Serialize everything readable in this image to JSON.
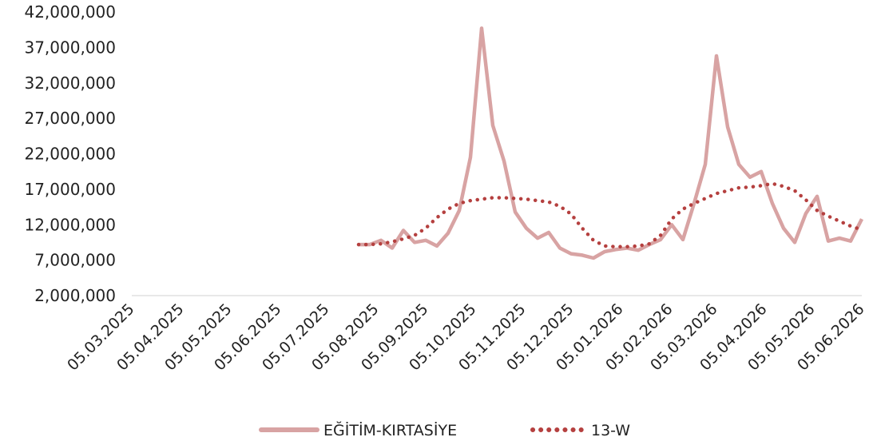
{
  "chart_data": {
    "type": "line",
    "title": "",
    "xlabel": "",
    "ylabel": "",
    "ylim": [
      2000000,
      42000000
    ],
    "y_ticks": [
      "2,000,000",
      "7,000,000",
      "12,000,000",
      "17,000,000",
      "22,000,000",
      "27,000,000",
      "32,000,000",
      "37,000,000",
      "42,000,000"
    ],
    "x_ticks": [
      "05.03.2025",
      "05.04.2025",
      "05.05.2025",
      "05.06.2025",
      "05.07.2025",
      "05.08.2025",
      "05.09.2025",
      "05.10.2025",
      "05.11.2025",
      "05.12.2025",
      "05.01.2026",
      "05.02.2026",
      "05.03.2026",
      "05.04.2026",
      "05.05.2026",
      "05.06.2026"
    ],
    "x_range": [
      "2025-03-05",
      "2026-06-05"
    ],
    "legend_position": "bottom",
    "grid": false,
    "series": [
      {
        "name": "EĞİTİM-KIRTASİYE",
        "color": "#d8a3a3",
        "style": "solid",
        "x": [
          "2025-07-25",
          "2025-08-01",
          "2025-08-08",
          "2025-08-15",
          "2025-08-22",
          "2025-08-29",
          "2025-09-05",
          "2025-09-12",
          "2025-09-19",
          "2025-09-26",
          "2025-10-03",
          "2025-10-10",
          "2025-10-17",
          "2025-10-24",
          "2025-10-31",
          "2025-11-07",
          "2025-11-14",
          "2025-11-21",
          "2025-11-28",
          "2025-12-05",
          "2025-12-12",
          "2025-12-19",
          "2025-12-26",
          "2026-01-02",
          "2026-01-09",
          "2026-01-16",
          "2026-01-23",
          "2026-01-30",
          "2026-02-06",
          "2026-02-13",
          "2026-02-20",
          "2026-02-27",
          "2026-03-06",
          "2026-03-13",
          "2026-03-20",
          "2026-03-27",
          "2026-04-03",
          "2026-04-10",
          "2026-04-17",
          "2026-04-24",
          "2026-05-01",
          "2026-05-08",
          "2026-05-15",
          "2026-05-22",
          "2026-05-29",
          "2026-06-05"
        ],
        "values": [
          9200000,
          9200000,
          9800000,
          8700000,
          11200000,
          9500000,
          9800000,
          9000000,
          10800000,
          14000000,
          21500000,
          39700000,
          26000000,
          21000000,
          13800000,
          11500000,
          10100000,
          10900000,
          8700000,
          7900000,
          7700000,
          7300000,
          8200000,
          8500000,
          8700000,
          8400000,
          9200000,
          9900000,
          12000000,
          9900000,
          15000000,
          20500000,
          35800000,
          25800000,
          20500000,
          18700000,
          19500000,
          15000000,
          11500000,
          9500000,
          13600000,
          16000000,
          9700000,
          10100000,
          9700000,
          12800000
        ]
      },
      {
        "name": "13-W",
        "color": "#b5403f",
        "style": "dotted",
        "x": [
          "2025-07-25",
          "2025-08-01",
          "2025-08-08",
          "2025-08-15",
          "2025-08-22",
          "2025-08-29",
          "2025-09-05",
          "2025-09-12",
          "2025-09-19",
          "2025-09-26",
          "2025-10-03",
          "2025-10-10",
          "2025-10-17",
          "2025-10-24",
          "2025-10-31",
          "2025-11-07",
          "2025-11-14",
          "2025-11-21",
          "2025-11-28",
          "2025-12-05",
          "2025-12-12",
          "2025-12-19",
          "2025-12-26",
          "2026-01-02",
          "2026-01-09",
          "2026-01-16",
          "2026-01-23",
          "2026-01-30",
          "2026-02-06",
          "2026-02-13",
          "2026-02-20",
          "2026-02-27",
          "2026-03-06",
          "2026-03-13",
          "2026-03-20",
          "2026-03-27",
          "2026-04-03",
          "2026-04-10",
          "2026-04-17",
          "2026-04-24",
          "2026-05-01",
          "2026-05-08",
          "2026-05-15",
          "2026-05-22",
          "2026-05-29",
          "2026-06-05"
        ],
        "values": [
          9200000,
          9200000,
          9300000,
          9600000,
          10000000,
          10500000,
          11500000,
          13000000,
          14200000,
          15000000,
          15400000,
          15600000,
          15800000,
          15800000,
          15700000,
          15600000,
          15400000,
          15200000,
          14600000,
          13500000,
          11500000,
          9800000,
          9000000,
          8900000,
          8900000,
          9000000,
          9300000,
          10500000,
          12800000,
          14200000,
          15000000,
          15700000,
          16400000,
          16800000,
          17200000,
          17300000,
          17500000,
          17800000,
          17400000,
          16800000,
          15500000,
          14000000,
          13200000,
          12500000,
          11800000,
          11300000
        ]
      }
    ]
  }
}
